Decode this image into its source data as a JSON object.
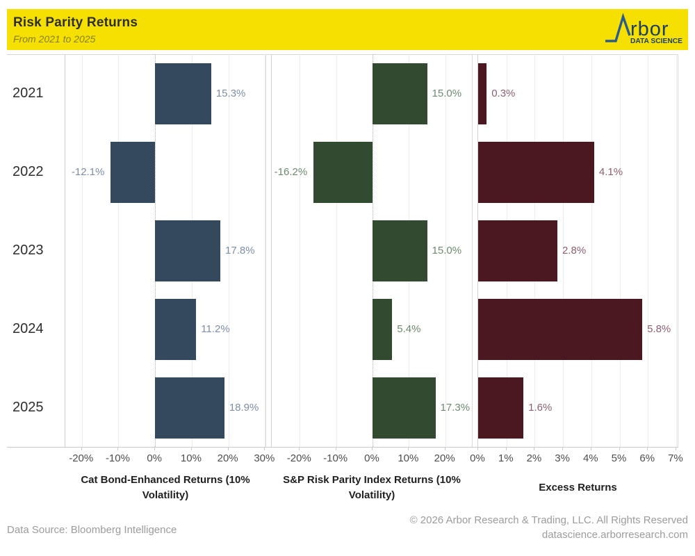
{
  "header": {
    "title": "Risk Parity Returns",
    "subtitle": "From 2021 to 2025",
    "logo": {
      "name": "Arbor Data Science",
      "word": "rbor",
      "tagline": "DATA SCIENCE"
    }
  },
  "colors": {
    "header_bg": "#F6E002",
    "logo_blue": "#2A5B8C",
    "logo_text_blue": "#1D3F66"
  },
  "chart_data": {
    "type": "bar",
    "orientation": "horizontal",
    "grid": true,
    "value_labels": "outside-end",
    "categories": [
      "2021",
      "2022",
      "2023",
      "2024",
      "2025"
    ],
    "panels": [
      {
        "title": "Cat Bond-Enhanced Returns (10% Volatility)",
        "values": [
          15.3,
          -12.1,
          17.8,
          11.2,
          18.9
        ],
        "labels": [
          "15.3%",
          "-12.1%",
          "17.8%",
          "11.2%",
          "18.9%"
        ],
        "bar_color": "#35495E",
        "label_color": "#7E8EA6",
        "axis": {
          "min": -24.5,
          "max": 30.5,
          "ticks": [
            -20,
            -10,
            0,
            10,
            20,
            30
          ],
          "tick_labels": [
            "-20%",
            "-10%",
            "0%",
            "10%",
            "20%",
            "30%"
          ],
          "zero_dotted": true
        }
      },
      {
        "title": "S&P Risk Parity Index Returns (10% Volatility)",
        "values": [
          15.0,
          -16.2,
          15.0,
          5.4,
          17.3
        ],
        "labels": [
          "15.0%",
          "-16.2%",
          "15.0%",
          "5.4%",
          "17.3%"
        ],
        "bar_color": "#324A2F",
        "label_color": "#6D8A6F",
        "axis": {
          "min": -27.7,
          "max": 27.7,
          "ticks": [
            -20,
            -10,
            0,
            10,
            20
          ],
          "tick_labels": [
            "-20%",
            "-10%",
            "0%",
            "10%",
            "20%"
          ],
          "zero_dotted": true
        }
      },
      {
        "title": "Excess Returns",
        "values": [
          0.3,
          4.1,
          2.8,
          5.8,
          1.6
        ],
        "labels": [
          "0.3%",
          "4.1%",
          "2.8%",
          "5.8%",
          "1.6%"
        ],
        "bar_color": "#4B1822",
        "label_color": "#8D5F6D",
        "axis": {
          "min": 0,
          "max": 7.1,
          "ticks": [
            0,
            1,
            2,
            3,
            4,
            5,
            6,
            7
          ],
          "tick_labels": [
            "0%",
            "1%",
            "2%",
            "3%",
            "4%",
            "5%",
            "6%",
            "7%"
          ],
          "zero_dotted": false
        }
      }
    ]
  },
  "footer": {
    "source": "Data Source: Bloomberg Intelligence",
    "copyright": "© 2026 Arbor Research & Trading, LLC. All Rights Reserved",
    "website": "datascience.arborresearch.com"
  }
}
